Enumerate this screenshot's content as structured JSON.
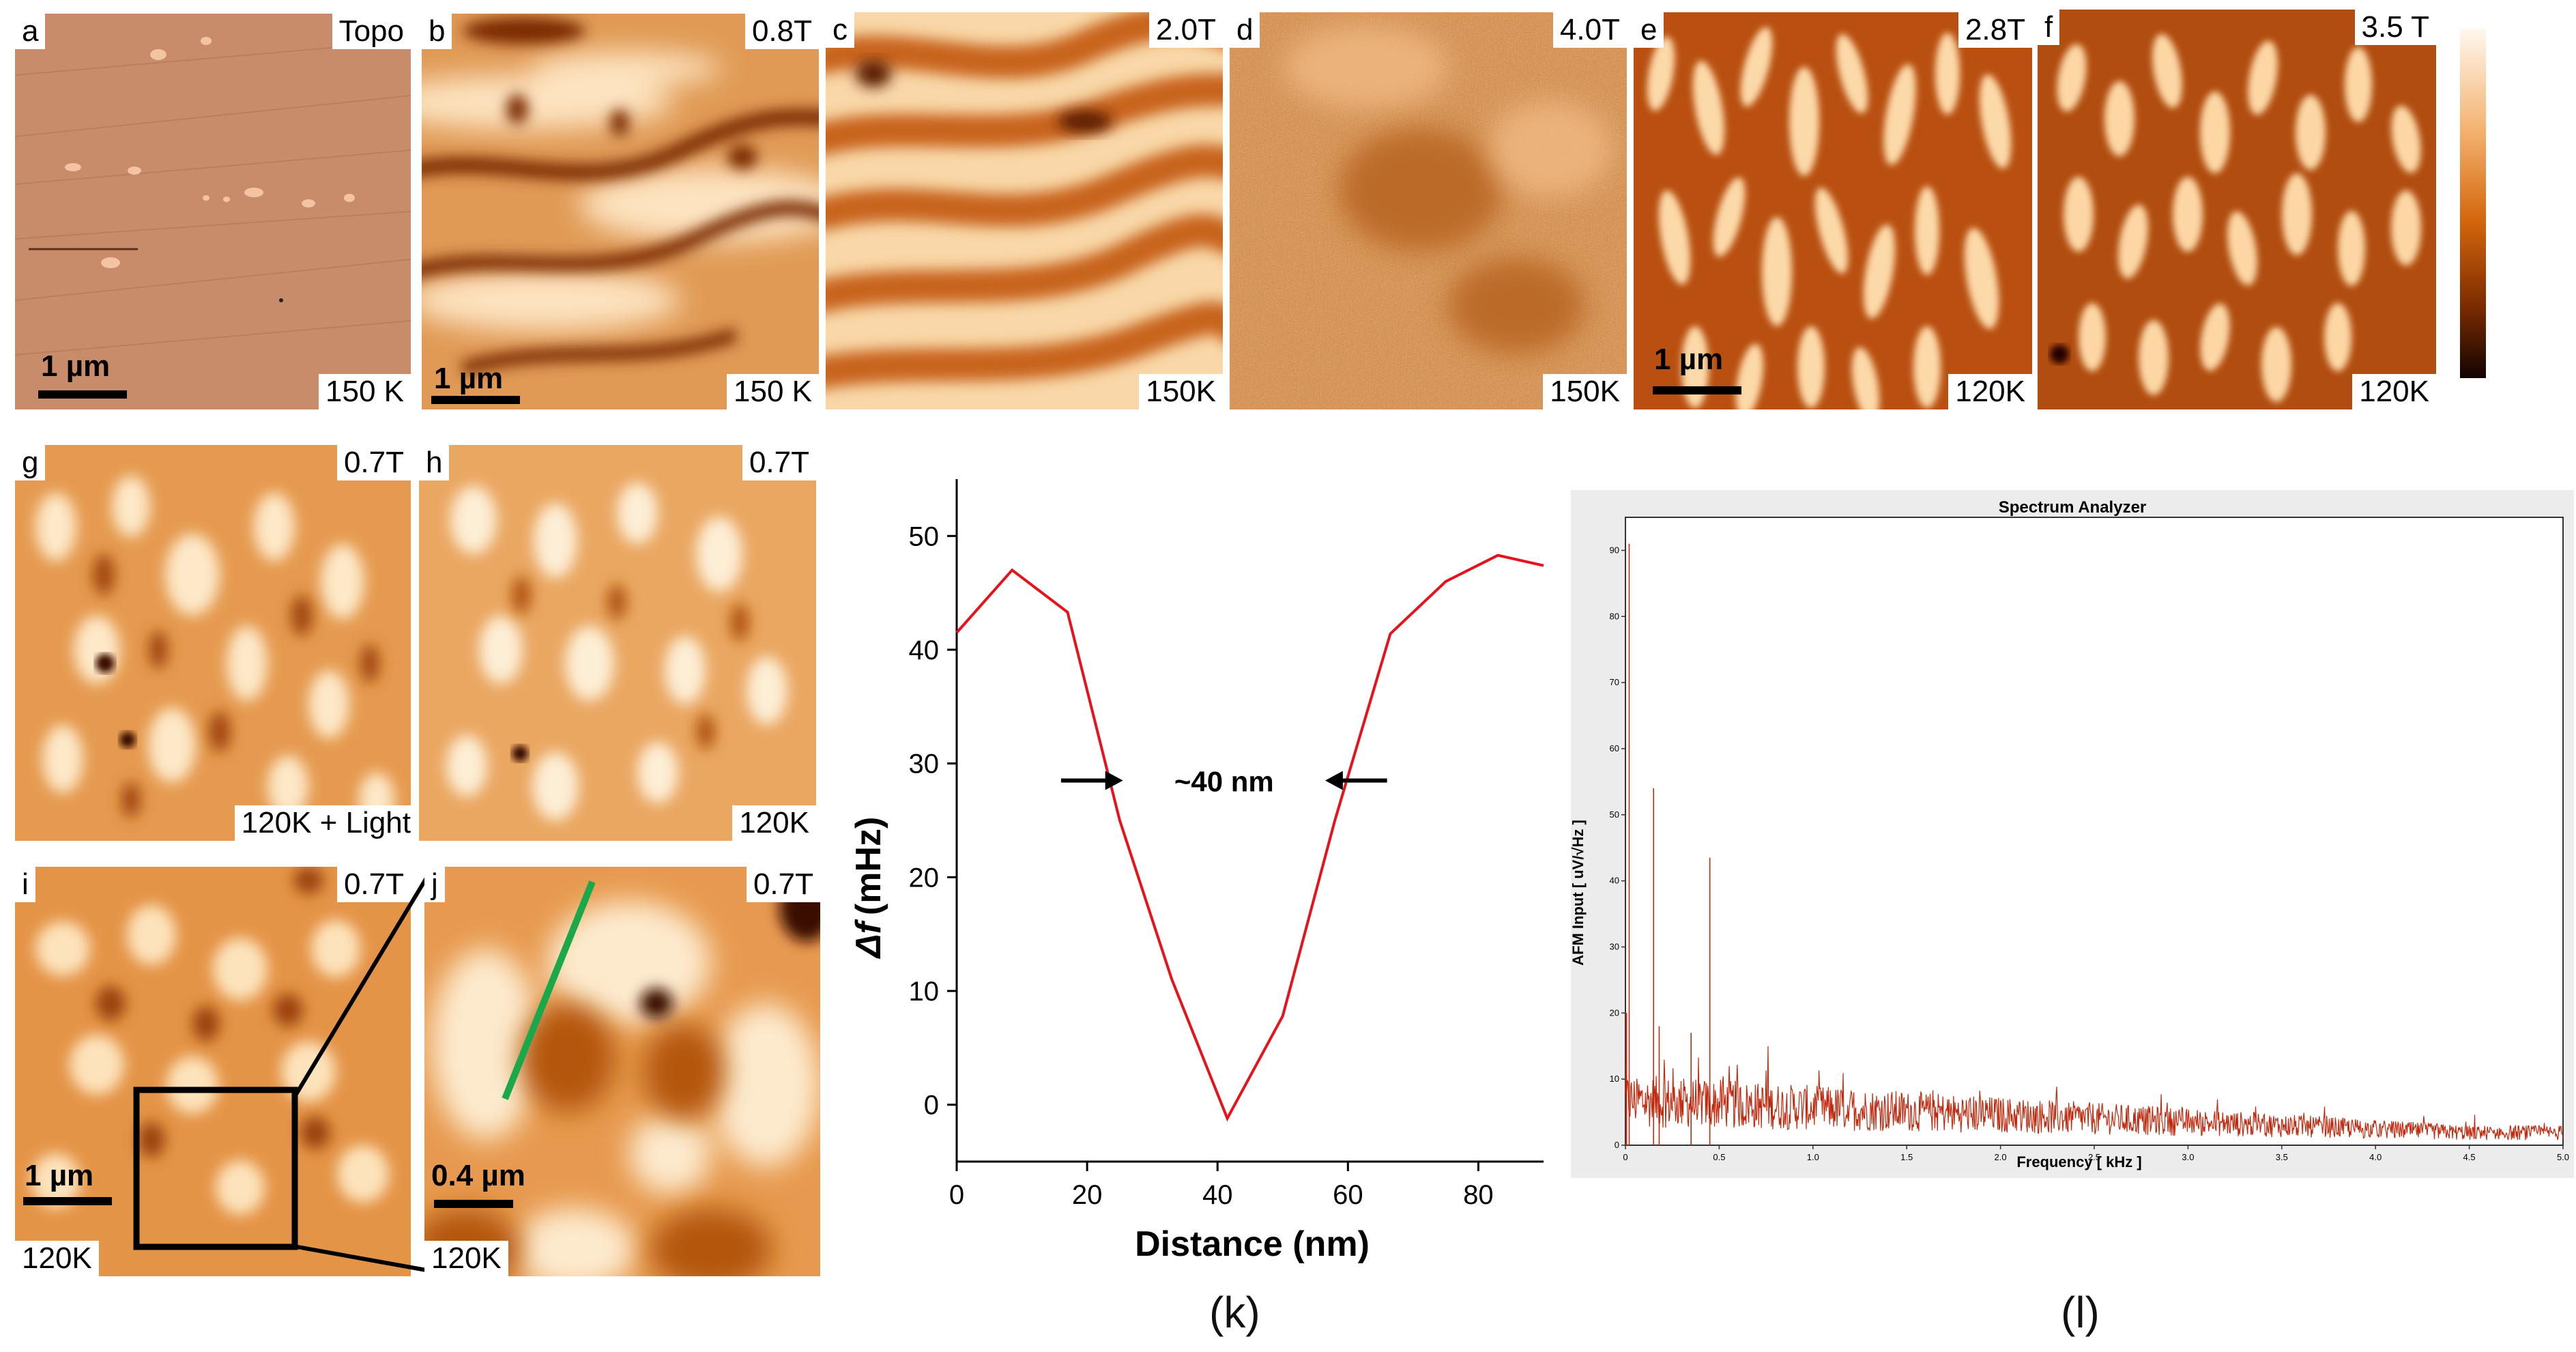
{
  "panels": {
    "a": {
      "letter": "a",
      "field": "Topo",
      "temp": "150 K",
      "scale": "1 µm"
    },
    "b": {
      "letter": "b",
      "field": "0.8T",
      "temp": "150 K",
      "scale": "1 µm"
    },
    "c": {
      "letter": "c",
      "field": "2.0T",
      "temp": "150K"
    },
    "d": {
      "letter": "d",
      "field": "4.0T",
      "temp": "150K"
    },
    "e": {
      "letter": "e",
      "field": "2.8T",
      "temp": "120K",
      "scale": "1 µm"
    },
    "f": {
      "letter": "f",
      "field": "3.5 T",
      "temp": "120K"
    },
    "g": {
      "letter": "g",
      "field": "0.7T",
      "temp": "120K + Light"
    },
    "h": {
      "letter": "h",
      "field": "0.7T",
      "temp": "120K"
    },
    "i": {
      "letter": "i",
      "field": "0.7T",
      "temp": "120K",
      "scale": "1 µm"
    },
    "j": {
      "letter": "j",
      "field": "0.7T",
      "temp": "120K",
      "scale": "0.4 µm"
    }
  },
  "colors": {
    "profile_line": "#e8121a",
    "spectrum": "#c0290e",
    "green_line": "#1aa84a"
  },
  "captions": {
    "k": "(k)",
    "l": "(l)"
  },
  "chart_data": [
    {
      "type": "line",
      "title": "",
      "xlabel": "Distance (nm)",
      "ylabel_symbol": "Δf",
      "ylabel_unit": "(mHz)",
      "xlim": [
        0,
        90
      ],
      "ylim": [
        -5,
        55
      ],
      "xticks": [
        0,
        20,
        40,
        60,
        80
      ],
      "yticks": [
        0,
        10,
        20,
        30,
        40,
        50
      ],
      "x": [
        0,
        8.5,
        17,
        25,
        33,
        41.5,
        50,
        58,
        66.5,
        75,
        83,
        90
      ],
      "y": [
        41.5,
        47,
        43.3,
        25,
        11,
        -1.2,
        7.8,
        25,
        41.4,
        46,
        48.3,
        47.4
      ],
      "annotation": "~40 nm"
    },
    {
      "type": "line",
      "title": "Spectrum Analyzer",
      "xlabel": "Frequency [ kHz ]",
      "ylabel": "AFM Input [ uV/√Hz ]",
      "xlim": [
        0,
        5
      ],
      "ylim": [
        0,
        95
      ],
      "xticks": [
        "0",
        "0.5",
        "1.0",
        "1.5",
        "2.0",
        "2.5",
        "3.0",
        "3.5",
        "4.0",
        "4.5",
        "5.0"
      ],
      "yticks": [
        "0",
        "10",
        "20",
        "30",
        "40",
        "50",
        "60",
        "70",
        "80",
        "90"
      ],
      "peaks": [
        {
          "x": 0.02,
          "y": 91
        },
        {
          "x": 0.15,
          "y": 54
        },
        {
          "x": 0.45,
          "y": 43.5
        },
        {
          "x": 0.18,
          "y": 18
        },
        {
          "x": 0.35,
          "y": 17
        }
      ],
      "noise_floor_start": 9,
      "noise_floor_end": 2.5
    }
  ]
}
